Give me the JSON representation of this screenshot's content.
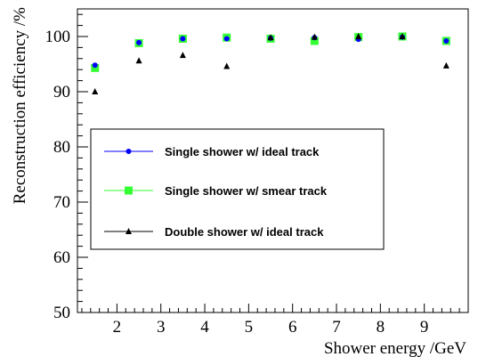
{
  "chart_data": {
    "type": "scatter",
    "xlabel": "Shower energy /GeV",
    "ylabel": "Reconstruction efficiency /%",
    "xlim": [
      1.1,
      10.0
    ],
    "ylim": [
      50,
      105
    ],
    "xticks": [
      2,
      3,
      4,
      5,
      6,
      7,
      8,
      9
    ],
    "yticks": [
      50,
      60,
      70,
      80,
      90,
      100
    ],
    "legend_position": "left-middle",
    "grid": false,
    "series": [
      {
        "name": "Single shower w/ ideal track",
        "marker": "circle",
        "color": "#0000ff",
        "x": [
          1.5,
          2.5,
          3.5,
          4.5,
          5.5,
          6.5,
          7.5,
          8.5,
          9.5
        ],
        "y": [
          94.8,
          98.9,
          99.6,
          99.6,
          99.7,
          99.8,
          99.5,
          99.9,
          99.2
        ]
      },
      {
        "name": "Single shower w/ smear track",
        "marker": "square",
        "color": "#33ff33",
        "x": [
          1.5,
          2.5,
          3.5,
          4.5,
          5.5,
          6.5,
          7.5,
          8.5,
          9.5
        ],
        "y": [
          94.3,
          98.8,
          99.6,
          99.8,
          99.6,
          99.2,
          99.9,
          100.0,
          99.2
        ]
      },
      {
        "name": "Double shower w/ ideal track",
        "marker": "triangle",
        "color": "#000000",
        "x": [
          1.5,
          2.5,
          3.5,
          4.5,
          5.5,
          6.5,
          7.5,
          8.5,
          9.5
        ],
        "y": [
          90.0,
          95.6,
          96.6,
          94.6,
          99.8,
          99.9,
          100.0,
          100.0,
          94.7
        ]
      }
    ]
  }
}
